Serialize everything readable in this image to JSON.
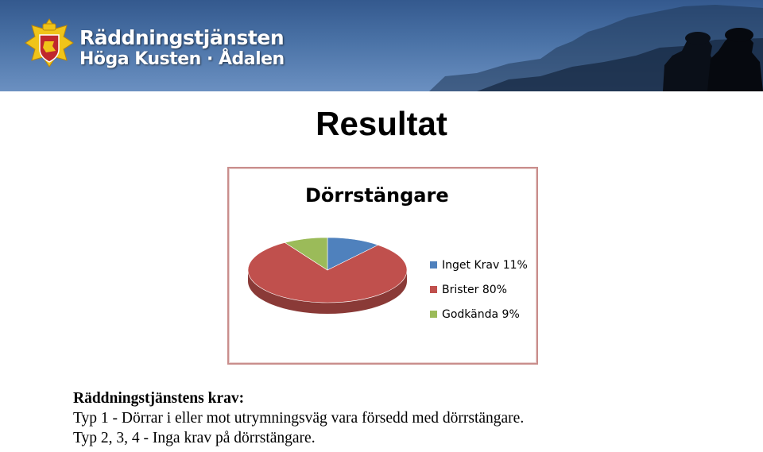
{
  "header": {
    "org_line1": "Räddningstjänsten",
    "org_line2": "Höga Kusten · Ådalen",
    "colors": {
      "banner_top": "#34598e",
      "banner_bottom": "#6b90c1",
      "logo_gold": "#f0c419",
      "logo_red": "#c0282d"
    }
  },
  "slide": {
    "title": "Resultat"
  },
  "chart_data": {
    "type": "pie",
    "title": "Dörrstängare",
    "categories": [
      "Inget Krav 11%",
      "Brister 80%",
      "Godkända 9%"
    ],
    "values": [
      11,
      80,
      9
    ],
    "colors": [
      "#4f81bd",
      "#c0504d",
      "#9bbb59"
    ],
    "style": "3d",
    "legend_position": "right"
  },
  "body": {
    "heading": "Räddningstjänstens krav:",
    "lines": [
      "Typ 1 - Dörrar i eller mot utrymningsväg vara försedd med dörrstängare.",
      "Typ 2, 3, 4 - Inga krav på dörrstängare."
    ]
  }
}
